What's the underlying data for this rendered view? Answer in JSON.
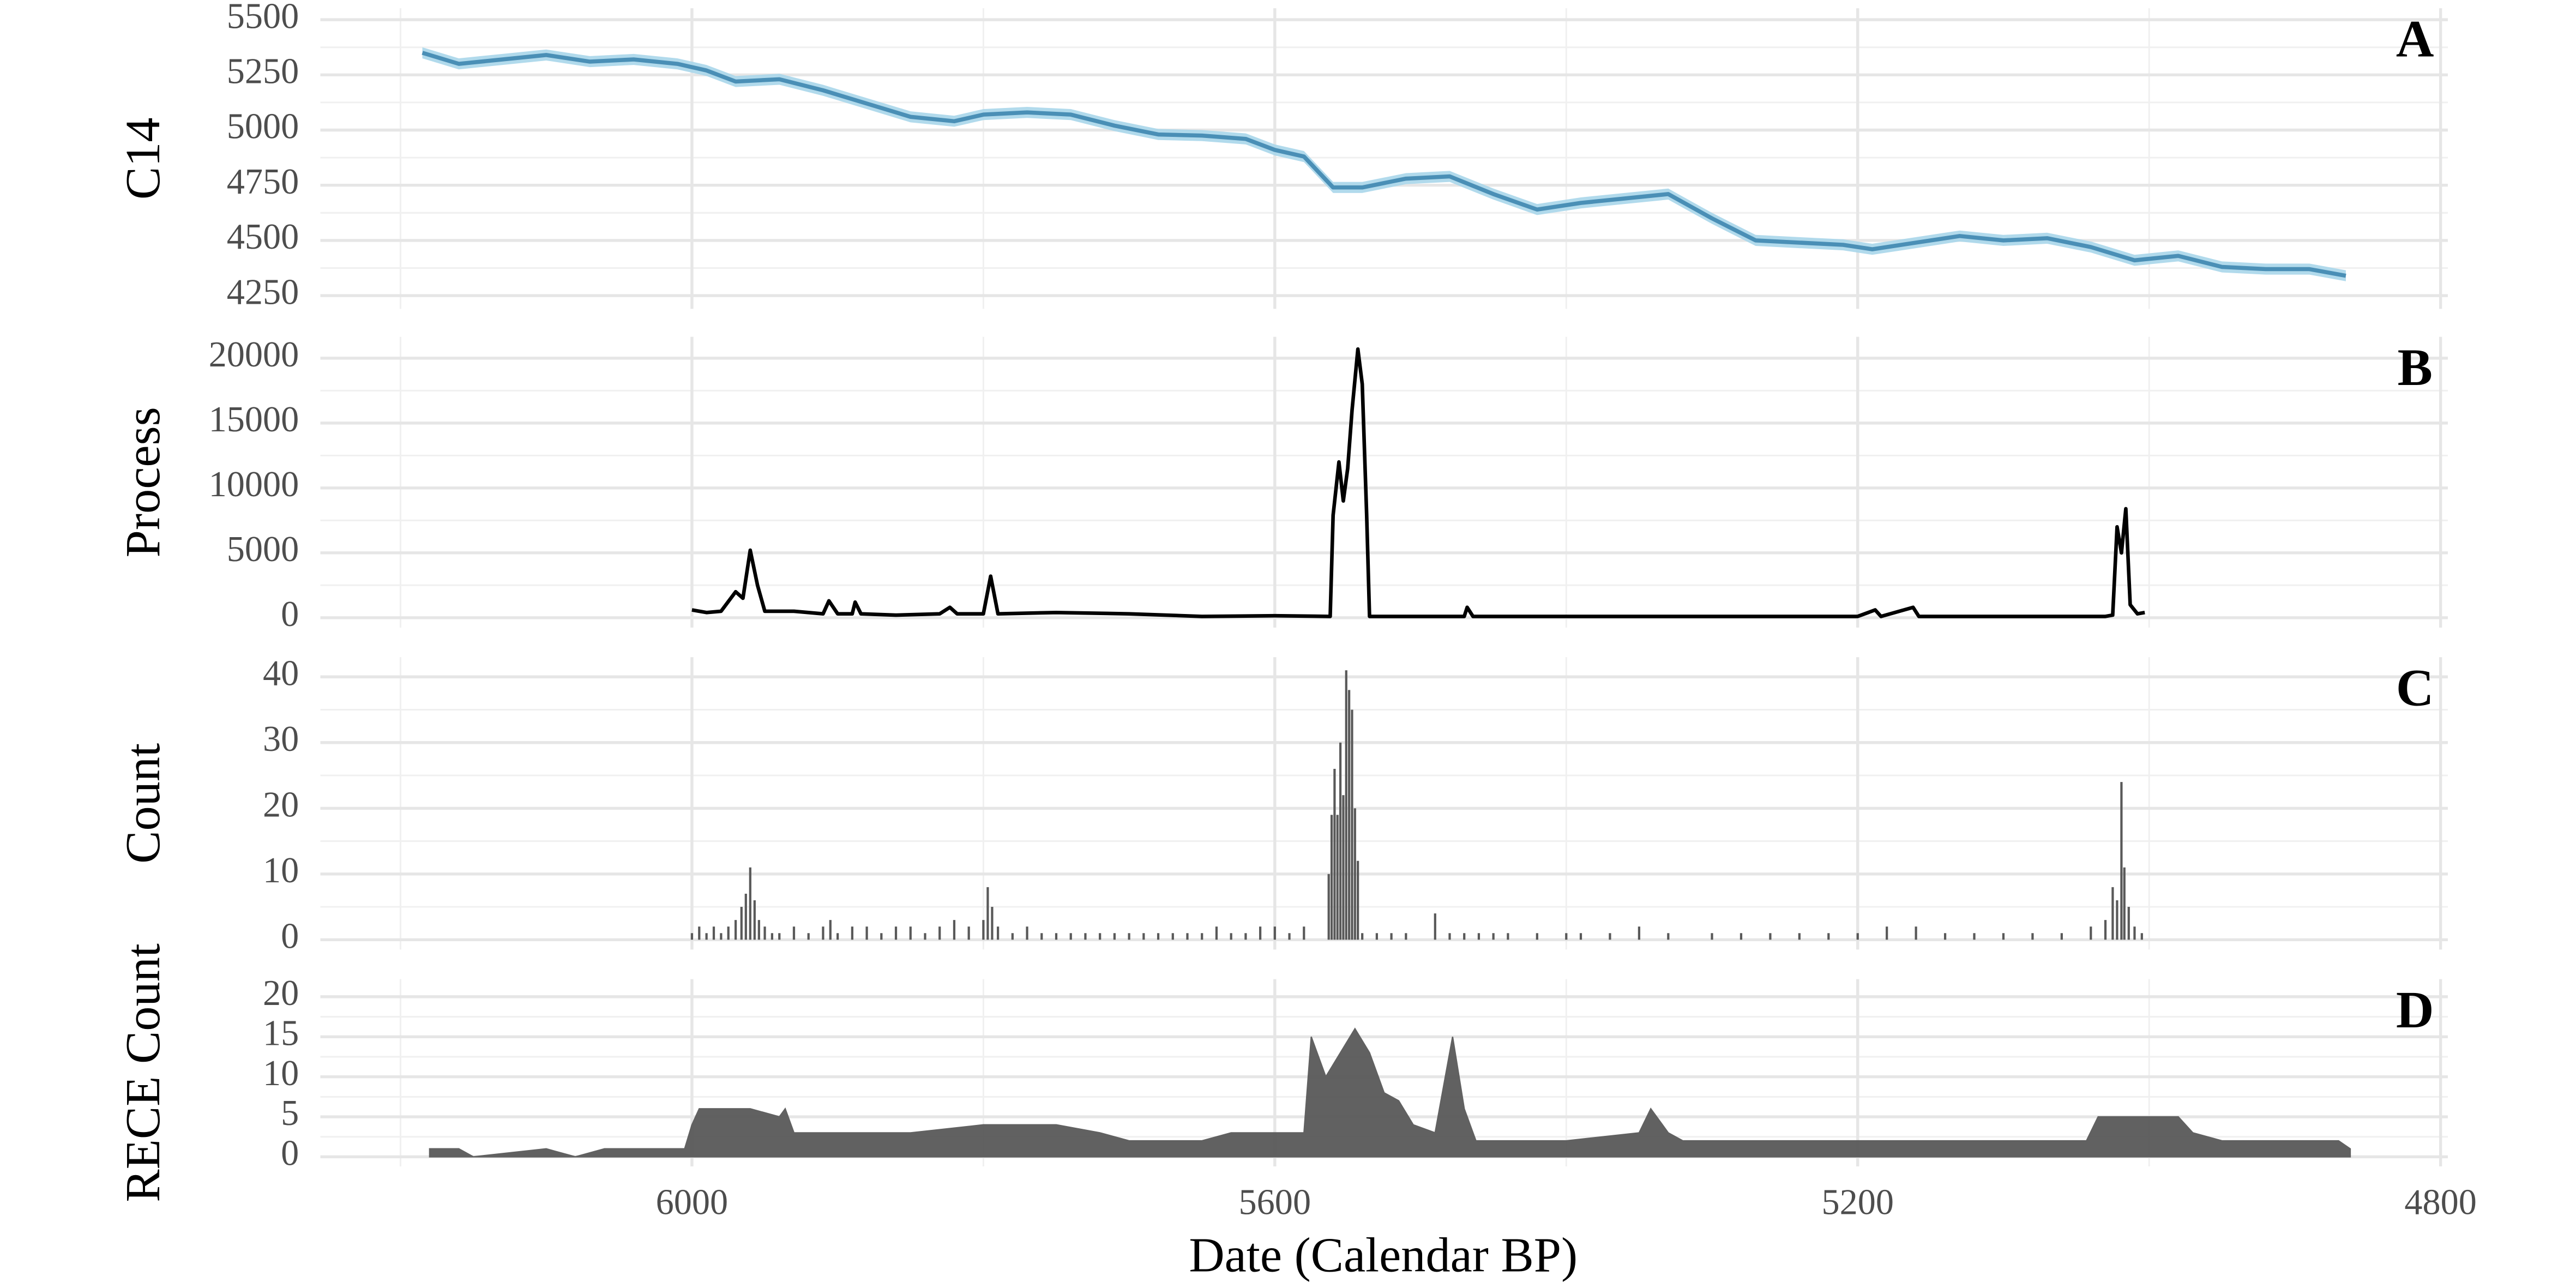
{
  "chart_data": [
    {
      "type": "line",
      "ylabel": "C14",
      "panel_label": "A",
      "color": "#4a8fb6",
      "band_color": "#a9d6ea",
      "xlim": [
        6255,
        4795
      ],
      "xticks": [
        6000,
        5600,
        5200,
        4800
      ],
      "xminorticks": [
        6200,
        5800,
        5400,
        5000
      ],
      "ylim": [
        4190,
        5552
      ],
      "yticks": [
        4250,
        4500,
        4750,
        5000,
        5250,
        5500
      ],
      "grid": true,
      "x": [
        6185,
        6160,
        6130,
        6100,
        6070,
        6040,
        6010,
        5990,
        5970,
        5940,
        5910,
        5880,
        5850,
        5820,
        5800,
        5770,
        5740,
        5710,
        5680,
        5650,
        5620,
        5600,
        5580,
        5560,
        5540,
        5510,
        5480,
        5450,
        5420,
        5390,
        5360,
        5330,
        5300,
        5270,
        5240,
        5210,
        5190,
        5160,
        5130,
        5100,
        5070,
        5040,
        5010,
        4980,
        4950,
        4920,
        4890,
        4865
      ],
      "values": [
        5350,
        5300,
        5320,
        5340,
        5310,
        5320,
        5300,
        5270,
        5220,
        5230,
        5180,
        5120,
        5060,
        5040,
        5070,
        5080,
        5070,
        5020,
        4980,
        4975,
        4960,
        4910,
        4880,
        4740,
        4740,
        4780,
        4790,
        4710,
        4640,
        4670,
        4690,
        4710,
        4600,
        4500,
        4490,
        4480,
        4460,
        4490,
        4520,
        4500,
        4510,
        4470,
        4410,
        4430,
        4380,
        4370,
        4370,
        4340
      ],
      "error": [
        25,
        25,
        25,
        25,
        25,
        25,
        25,
        25,
        25,
        25,
        25,
        25,
        25,
        25,
        25,
        25,
        25,
        25,
        25,
        25,
        25,
        25,
        25,
        25,
        25,
        25,
        25,
        25,
        25,
        25,
        25,
        25,
        25,
        25,
        25,
        25,
        25,
        25,
        25,
        25,
        25,
        25,
        25,
        25,
        25,
        25,
        25,
        25
      ]
    },
    {
      "type": "line",
      "ylabel": "Process",
      "panel_label": "B",
      "color": "#000000",
      "xlim": [
        6255,
        4795
      ],
      "xticks": [
        6000,
        5600,
        5200,
        4800
      ],
      "xminorticks": [
        6200,
        5800,
        5400,
        5000
      ],
      "ylim": [
        -760,
        21650
      ],
      "yticks": [
        0,
        5000,
        10000,
        15000,
        20000
      ],
      "grid": true,
      "x": [
        6000,
        5990,
        5980,
        5970,
        5965,
        5960,
        5955,
        5950,
        5930,
        5910,
        5906,
        5900,
        5890,
        5888,
        5884,
        5860,
        5830,
        5823,
        5818,
        5800,
        5795,
        5790,
        5750,
        5700,
        5650,
        5600,
        5562,
        5560,
        5556,
        5553,
        5550,
        5547,
        5543,
        5540,
        5537,
        5535,
        5500,
        5470,
        5468,
        5464,
        5400,
        5300,
        5200,
        5188,
        5184,
        5162,
        5158,
        5100,
        5030,
        5025,
        5022,
        5019,
        5016,
        5013,
        5008,
        5003
      ],
      "values": [
        600,
        400,
        500,
        2000,
        1500,
        5200,
        2500,
        500,
        500,
        300,
        1300,
        300,
        300,
        1200,
        300,
        200,
        300,
        800,
        300,
        300,
        3200,
        300,
        400,
        300,
        100,
        150,
        100,
        7900,
        12000,
        9000,
        11500,
        16000,
        20700,
        18000,
        8000,
        100,
        100,
        100,
        800,
        100,
        100,
        100,
        100,
        600,
        100,
        800,
        100,
        100,
        100,
        200,
        7000,
        5000,
        8400,
        1000,
        300,
        400
      ]
    },
    {
      "type": "bar",
      "ylabel": "Count",
      "panel_label": "C",
      "color": "#595959",
      "xlim": [
        6255,
        4795
      ],
      "xticks": [
        6000,
        5600,
        5200,
        4800
      ],
      "xminorticks": [
        6200,
        5800,
        5400,
        5000
      ],
      "ylim": [
        -1.5,
        43
      ],
      "yticks": [
        0,
        10,
        20,
        30,
        40
      ],
      "grid": true,
      "x": [
        6000,
        5995,
        5990,
        5985,
        5980,
        5975,
        5970,
        5966,
        5963,
        5960,
        5957,
        5954,
        5950,
        5945,
        5940,
        5930,
        5920,
        5910,
        5905,
        5900,
        5890,
        5880,
        5870,
        5860,
        5850,
        5840,
        5830,
        5820,
        5810,
        5800,
        5797,
        5794,
        5790,
        5780,
        5770,
        5760,
        5750,
        5740,
        5730,
        5720,
        5710,
        5700,
        5690,
        5680,
        5670,
        5660,
        5650,
        5640,
        5630,
        5620,
        5610,
        5600,
        5590,
        5580,
        5563,
        5561,
        5559,
        5557,
        5555,
        5553,
        5551,
        5549,
        5547,
        5545,
        5543,
        5540,
        5530,
        5520,
        5510,
        5490,
        5480,
        5470,
        5460,
        5450,
        5440,
        5420,
        5400,
        5390,
        5370,
        5350,
        5330,
        5300,
        5280,
        5260,
        5240,
        5220,
        5200,
        5180,
        5160,
        5140,
        5120,
        5100,
        5080,
        5060,
        5040,
        5030,
        5025,
        5022,
        5019,
        5017,
        5014,
        5010,
        5005
      ],
      "values": [
        1,
        2,
        1,
        2,
        1,
        2,
        3,
        5,
        7,
        11,
        6,
        3,
        2,
        1,
        1,
        2,
        1,
        2,
        3,
        1,
        2,
        2,
        1,
        2,
        2,
        1,
        2,
        3,
        2,
        3,
        8,
        5,
        2,
        1,
        2,
        1,
        1,
        1,
        1,
        1,
        1,
        1,
        1,
        1,
        1,
        1,
        1,
        2,
        1,
        1,
        2,
        2,
        1,
        2,
        10,
        19,
        26,
        19,
        30,
        22,
        41,
        38,
        35,
        20,
        12,
        1,
        1,
        1,
        1,
        4,
        1,
        1,
        1,
        1,
        1,
        1,
        1,
        1,
        1,
        2,
        1,
        1,
        1,
        1,
        1,
        1,
        1,
        2,
        2,
        1,
        1,
        1,
        1,
        1,
        2,
        3,
        8,
        6,
        24,
        11,
        5,
        2,
        1
      ]
    },
    {
      "type": "area",
      "ylabel": "RECE Count",
      "panel_label": "D",
      "color": "#595959",
      "xlabel": "Date (Calendar BP)",
      "xlim": [
        6255,
        4795
      ],
      "xticks": [
        6000,
        5600,
        5200,
        4800
      ],
      "xminorticks": [
        6200,
        5800,
        5400,
        5000
      ],
      "ylim": [
        -1.2,
        22.2
      ],
      "yticks": [
        0,
        5,
        10,
        15,
        20
      ],
      "grid": true,
      "x": [
        6180,
        6160,
        6150,
        6100,
        6080,
        6060,
        6020,
        6005,
        6000,
        5995,
        5960,
        5940,
        5936,
        5930,
        5900,
        5850,
        5800,
        5750,
        5720,
        5700,
        5650,
        5630,
        5580,
        5575,
        5565,
        5555,
        5545,
        5535,
        5525,
        5515,
        5505,
        5490,
        5478,
        5470,
        5462,
        5400,
        5350,
        5342,
        5330,
        5320,
        5250,
        5200,
        5100,
        5043,
        5035,
        4980,
        4970,
        4950,
        4900,
        4870,
        4862
      ],
      "values": [
        1,
        1,
        0,
        1,
        0,
        1,
        1,
        1,
        4,
        6,
        6,
        5,
        6,
        3,
        3,
        3,
        4,
        4,
        3,
        2,
        2,
        3,
        3,
        15,
        10,
        13,
        16,
        13,
        8,
        7,
        4,
        3,
        15,
        6,
        2,
        2,
        3,
        6,
        3,
        2,
        2,
        2,
        2,
        2,
        5,
        5,
        3,
        2,
        2,
        2,
        1
      ]
    }
  ]
}
